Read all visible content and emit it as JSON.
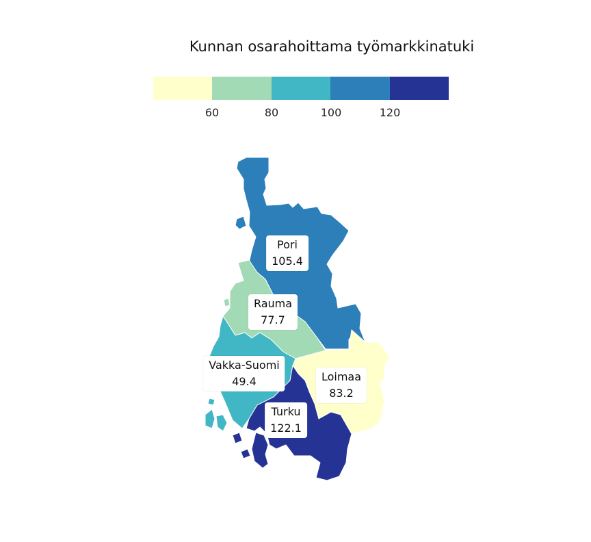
{
  "title": "Kunnan osarahoittama työmarkkinatuki",
  "legend": {
    "colors": [
      "#ffffcc",
      "#a1dab4",
      "#41b6c4",
      "#2c7fb8",
      "#253494"
    ],
    "ticks": [
      "60",
      "80",
      "100",
      "120"
    ]
  },
  "regions": [
    {
      "name": "Pori",
      "value": "105.4",
      "color": "#2c7fb8"
    },
    {
      "name": "Rauma",
      "value": "77.7",
      "color": "#a1dab4"
    },
    {
      "name": "Vakka-Suomi",
      "value": "49.4",
      "color": "#ffffcc"
    },
    {
      "name": "Loimaa",
      "value": "83.2",
      "color": "#41b6c4"
    },
    {
      "name": "Turku",
      "value": "122.1",
      "color": "#253494"
    }
  ]
}
